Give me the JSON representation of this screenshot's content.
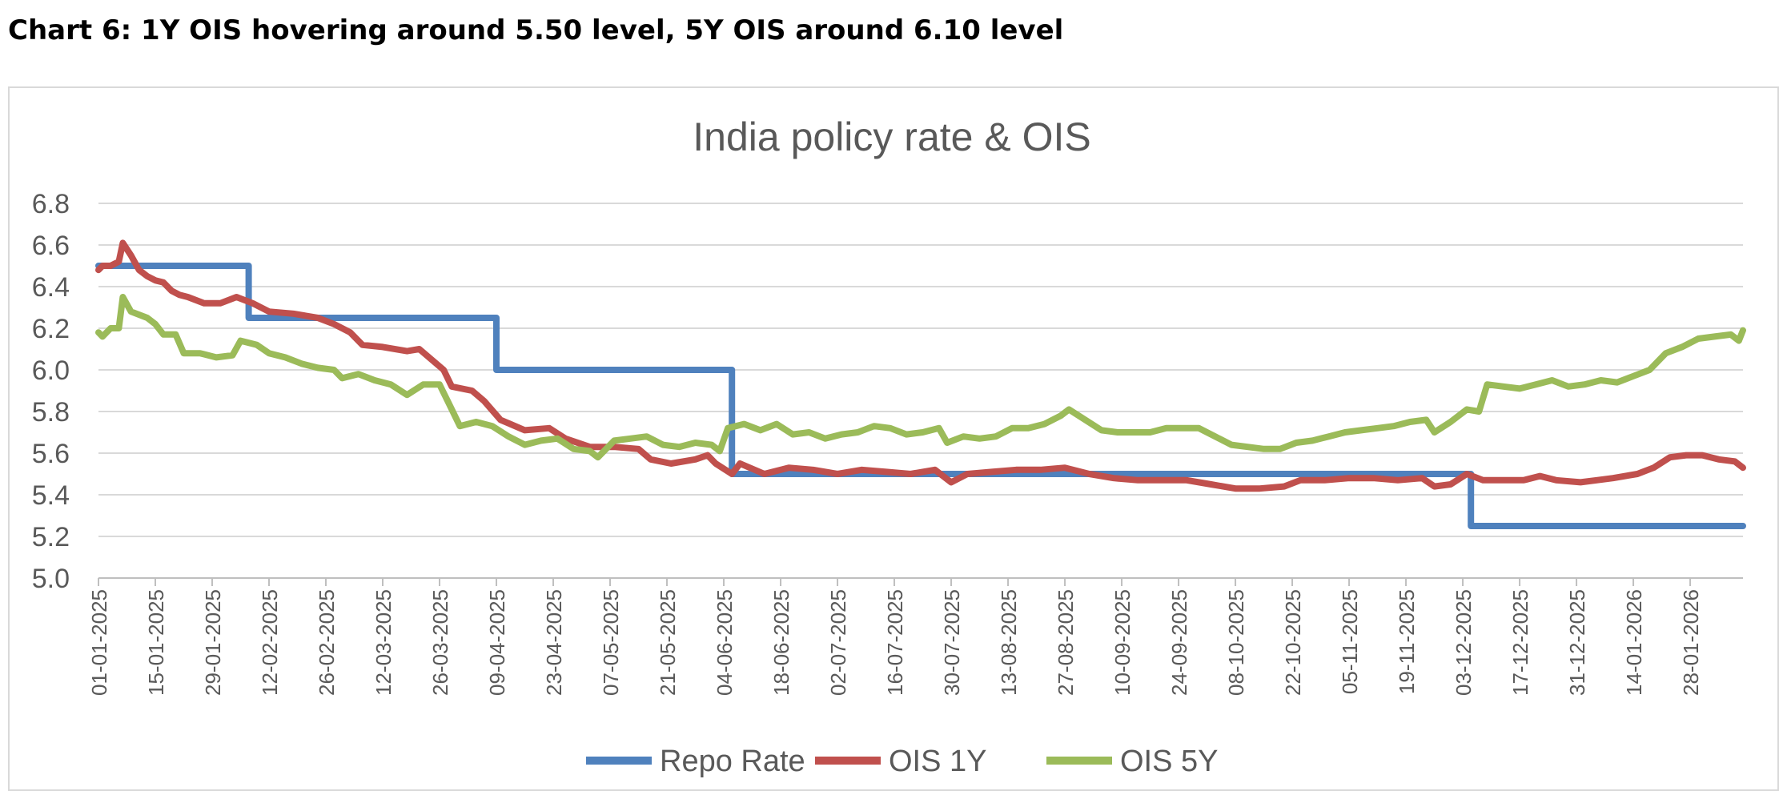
{
  "heading": "Chart 6: 1Y OIS hovering around 5.50 level, 5Y OIS around 6.10 level",
  "chart_data": {
    "type": "line",
    "title": "India policy rate & OIS",
    "xlabel": "",
    "ylabel": "",
    "ylim": [
      5.0,
      6.8
    ],
    "xlim": [
      "01-01-2025",
      "10-02-2026"
    ],
    "yticks": [
      "5.0",
      "5.2",
      "5.4",
      "5.6",
      "5.8",
      "6.0",
      "6.2",
      "6.4",
      "6.6",
      "6.8"
    ],
    "xticks": [
      "01-01-2025",
      "15-01-2025",
      "29-01-2025",
      "12-02-2025",
      "26-02-2025",
      "12-03-2025",
      "26-03-2025",
      "09-04-2025",
      "23-04-2025",
      "07-05-2025",
      "21-05-2025",
      "04-06-2025",
      "18-06-2025",
      "02-07-2025",
      "16-07-2025",
      "30-07-2025",
      "13-08-2025",
      "27-08-2025",
      "10-09-2025",
      "24-09-2025",
      "08-10-2025",
      "22-10-2025",
      "05-11-2025",
      "19-11-2025",
      "03-12-2025",
      "17-12-2025",
      "31-12-2025",
      "14-01-2026",
      "28-01-2026"
    ],
    "grid": true,
    "legend_position": "bottom",
    "colors": {
      "repo": "#4f81bd",
      "ois1y": "#c0504d",
      "ois5y": "#9bbb59",
      "grid": "#d9d9d9",
      "text": "#595959"
    },
    "series": [
      {
        "name": "Repo Rate",
        "points": [
          [
            "01-01-2025",
            6.5
          ],
          [
            "07-02-2025",
            6.5
          ],
          [
            "07-02-2025",
            6.25
          ],
          [
            "09-04-2025",
            6.25
          ],
          [
            "09-04-2025",
            6.0
          ],
          [
            "06-06-2025",
            6.0
          ],
          [
            "06-06-2025",
            5.5
          ],
          [
            "05-12-2025",
            5.5
          ],
          [
            "05-12-2025",
            5.25
          ],
          [
            "10-02-2026",
            5.25
          ]
        ]
      },
      {
        "name": "OIS 1Y",
        "points": [
          [
            "01-01-2025",
            6.48
          ],
          [
            "02-01-2025",
            6.5
          ],
          [
            "04-01-2025",
            6.5
          ],
          [
            "06-01-2025",
            6.52
          ],
          [
            "07-01-2025",
            6.61
          ],
          [
            "09-01-2025",
            6.55
          ],
          [
            "11-01-2025",
            6.48
          ],
          [
            "13-01-2025",
            6.45
          ],
          [
            "15-01-2025",
            6.43
          ],
          [
            "17-01-2025",
            6.42
          ],
          [
            "19-01-2025",
            6.38
          ],
          [
            "21-01-2025",
            6.36
          ],
          [
            "23-01-2025",
            6.35
          ],
          [
            "27-01-2025",
            6.32
          ],
          [
            "31-01-2025",
            6.32
          ],
          [
            "04-02-2025",
            6.35
          ],
          [
            "08-02-2025",
            6.32
          ],
          [
            "12-02-2025",
            6.28
          ],
          [
            "18-02-2025",
            6.27
          ],
          [
            "24-02-2025",
            6.25
          ],
          [
            "28-02-2025",
            6.22
          ],
          [
            "04-03-2025",
            6.18
          ],
          [
            "07-03-2025",
            6.12
          ],
          [
            "12-03-2025",
            6.11
          ],
          [
            "18-03-2025",
            6.09
          ],
          [
            "21-03-2025",
            6.1
          ],
          [
            "24-03-2025",
            6.05
          ],
          [
            "27-03-2025",
            6.0
          ],
          [
            "29-03-2025",
            5.92
          ],
          [
            "03-04-2025",
            5.9
          ],
          [
            "06-04-2025",
            5.85
          ],
          [
            "10-04-2025",
            5.76
          ],
          [
            "16-04-2025",
            5.71
          ],
          [
            "22-04-2025",
            5.72
          ],
          [
            "26-04-2025",
            5.67
          ],
          [
            "02-05-2025",
            5.63
          ],
          [
            "08-05-2025",
            5.63
          ],
          [
            "14-05-2025",
            5.62
          ],
          [
            "17-05-2025",
            5.57
          ],
          [
            "22-05-2025",
            5.55
          ],
          [
            "28-05-2025",
            5.57
          ],
          [
            "31-05-2025",
            5.59
          ],
          [
            "02-06-2025",
            5.55
          ],
          [
            "06-06-2025",
            5.5
          ],
          [
            "08-06-2025",
            5.55
          ],
          [
            "14-06-2025",
            5.5
          ],
          [
            "20-06-2025",
            5.53
          ],
          [
            "26-06-2025",
            5.52
          ],
          [
            "02-07-2025",
            5.5
          ],
          [
            "08-07-2025",
            5.52
          ],
          [
            "14-07-2025",
            5.51
          ],
          [
            "20-07-2025",
            5.5
          ],
          [
            "26-07-2025",
            5.52
          ],
          [
            "30-07-2025",
            5.46
          ],
          [
            "03-08-2025",
            5.5
          ],
          [
            "09-08-2025",
            5.51
          ],
          [
            "15-08-2025",
            5.52
          ],
          [
            "21-08-2025",
            5.52
          ],
          [
            "27-08-2025",
            5.53
          ],
          [
            "02-09-2025",
            5.5
          ],
          [
            "08-09-2025",
            5.48
          ],
          [
            "14-09-2025",
            5.47
          ],
          [
            "20-09-2025",
            5.47
          ],
          [
            "26-09-2025",
            5.47
          ],
          [
            "02-10-2025",
            5.45
          ],
          [
            "08-10-2025",
            5.43
          ],
          [
            "14-10-2025",
            5.43
          ],
          [
            "20-10-2025",
            5.44
          ],
          [
            "24-10-2025",
            5.47
          ],
          [
            "30-10-2025",
            5.47
          ],
          [
            "05-11-2025",
            5.48
          ],
          [
            "11-11-2025",
            5.48
          ],
          [
            "17-11-2025",
            5.47
          ],
          [
            "23-11-2025",
            5.48
          ],
          [
            "26-11-2025",
            5.44
          ],
          [
            "30-11-2025",
            5.45
          ],
          [
            "04-12-2025",
            5.5
          ],
          [
            "08-12-2025",
            5.47
          ],
          [
            "12-12-2025",
            5.47
          ],
          [
            "18-12-2025",
            5.47
          ],
          [
            "22-12-2025",
            5.49
          ],
          [
            "26-12-2025",
            5.47
          ],
          [
            "01-01-2026",
            5.46
          ],
          [
            "05-01-2026",
            5.47
          ],
          [
            "09-01-2026",
            5.48
          ],
          [
            "15-01-2026",
            5.5
          ],
          [
            "19-01-2026",
            5.53
          ],
          [
            "23-01-2026",
            5.58
          ],
          [
            "27-01-2026",
            5.59
          ],
          [
            "31-01-2026",
            5.59
          ],
          [
            "04-02-2026",
            5.57
          ],
          [
            "08-02-2026",
            5.56
          ],
          [
            "10-02-2026",
            5.53
          ]
        ]
      },
      {
        "name": "OIS 5Y",
        "points": [
          [
            "01-01-2025",
            6.18
          ],
          [
            "02-01-2025",
            6.16
          ],
          [
            "04-01-2025",
            6.2
          ],
          [
            "06-01-2025",
            6.2
          ],
          [
            "07-01-2025",
            6.35
          ],
          [
            "09-01-2025",
            6.28
          ],
          [
            "13-01-2025",
            6.25
          ],
          [
            "15-01-2025",
            6.22
          ],
          [
            "17-01-2025",
            6.17
          ],
          [
            "20-01-2025",
            6.17
          ],
          [
            "22-01-2025",
            6.08
          ],
          [
            "26-01-2025",
            6.08
          ],
          [
            "30-01-2025",
            6.06
          ],
          [
            "03-02-2025",
            6.07
          ],
          [
            "05-02-2025",
            6.14
          ],
          [
            "09-02-2025",
            6.12
          ],
          [
            "12-02-2025",
            6.08
          ],
          [
            "16-02-2025",
            6.06
          ],
          [
            "20-02-2025",
            6.03
          ],
          [
            "24-02-2025",
            6.01
          ],
          [
            "28-02-2025",
            6.0
          ],
          [
            "02-03-2025",
            5.96
          ],
          [
            "06-03-2025",
            5.98
          ],
          [
            "10-03-2025",
            5.95
          ],
          [
            "14-03-2025",
            5.93
          ],
          [
            "18-03-2025",
            5.88
          ],
          [
            "22-03-2025",
            5.93
          ],
          [
            "26-03-2025",
            5.93
          ],
          [
            "28-03-2025",
            5.85
          ],
          [
            "31-03-2025",
            5.73
          ],
          [
            "04-04-2025",
            5.75
          ],
          [
            "08-04-2025",
            5.73
          ],
          [
            "12-04-2025",
            5.68
          ],
          [
            "16-04-2025",
            5.64
          ],
          [
            "20-04-2025",
            5.66
          ],
          [
            "24-04-2025",
            5.67
          ],
          [
            "28-04-2025",
            5.62
          ],
          [
            "02-05-2025",
            5.61
          ],
          [
            "04-05-2025",
            5.58
          ],
          [
            "08-05-2025",
            5.66
          ],
          [
            "12-05-2025",
            5.67
          ],
          [
            "16-05-2025",
            5.68
          ],
          [
            "20-05-2025",
            5.64
          ],
          [
            "24-05-2025",
            5.63
          ],
          [
            "28-05-2025",
            5.65
          ],
          [
            "01-06-2025",
            5.64
          ],
          [
            "03-06-2025",
            5.61
          ],
          [
            "05-06-2025",
            5.72
          ],
          [
            "09-06-2025",
            5.74
          ],
          [
            "13-06-2025",
            5.71
          ],
          [
            "17-06-2025",
            5.74
          ],
          [
            "21-06-2025",
            5.69
          ],
          [
            "25-06-2025",
            5.7
          ],
          [
            "29-06-2025",
            5.67
          ],
          [
            "03-07-2025",
            5.69
          ],
          [
            "07-07-2025",
            5.7
          ],
          [
            "11-07-2025",
            5.73
          ],
          [
            "15-07-2025",
            5.72
          ],
          [
            "19-07-2025",
            5.69
          ],
          [
            "23-07-2025",
            5.7
          ],
          [
            "27-07-2025",
            5.72
          ],
          [
            "29-07-2025",
            5.65
          ],
          [
            "02-08-2025",
            5.68
          ],
          [
            "06-08-2025",
            5.67
          ],
          [
            "10-08-2025",
            5.68
          ],
          [
            "14-08-2025",
            5.72
          ],
          [
            "18-08-2025",
            5.72
          ],
          [
            "22-08-2025",
            5.74
          ],
          [
            "26-08-2025",
            5.78
          ],
          [
            "28-08-2025",
            5.81
          ],
          [
            "01-09-2025",
            5.76
          ],
          [
            "05-09-2025",
            5.71
          ],
          [
            "09-09-2025",
            5.7
          ],
          [
            "13-09-2025",
            5.7
          ],
          [
            "17-09-2025",
            5.7
          ],
          [
            "21-09-2025",
            5.72
          ],
          [
            "25-09-2025",
            5.72
          ],
          [
            "29-09-2025",
            5.72
          ],
          [
            "03-10-2025",
            5.68
          ],
          [
            "07-10-2025",
            5.64
          ],
          [
            "11-10-2025",
            5.63
          ],
          [
            "15-10-2025",
            5.62
          ],
          [
            "19-10-2025",
            5.62
          ],
          [
            "23-10-2025",
            5.65
          ],
          [
            "27-10-2025",
            5.66
          ],
          [
            "31-10-2025",
            5.68
          ],
          [
            "04-11-2025",
            5.7
          ],
          [
            "08-11-2025",
            5.71
          ],
          [
            "12-11-2025",
            5.72
          ],
          [
            "16-11-2025",
            5.73
          ],
          [
            "20-11-2025",
            5.75
          ],
          [
            "24-11-2025",
            5.76
          ],
          [
            "26-11-2025",
            5.7
          ],
          [
            "30-11-2025",
            5.75
          ],
          [
            "04-12-2025",
            5.81
          ],
          [
            "07-12-2025",
            5.8
          ],
          [
            "09-12-2025",
            5.93
          ],
          [
            "13-12-2025",
            5.92
          ],
          [
            "17-12-2025",
            5.91
          ],
          [
            "21-12-2025",
            5.93
          ],
          [
            "25-12-2025",
            5.95
          ],
          [
            "29-12-2025",
            5.92
          ],
          [
            "02-01-2026",
            5.93
          ],
          [
            "06-01-2026",
            5.95
          ],
          [
            "10-01-2026",
            5.94
          ],
          [
            "14-01-2026",
            5.97
          ],
          [
            "18-01-2026",
            6.0
          ],
          [
            "22-01-2026",
            6.08
          ],
          [
            "26-01-2026",
            6.11
          ],
          [
            "30-01-2026",
            6.15
          ],
          [
            "03-02-2026",
            6.16
          ],
          [
            "07-02-2026",
            6.17
          ],
          [
            "09-02-2026",
            6.14
          ],
          [
            "10-02-2026",
            6.19
          ]
        ]
      }
    ]
  }
}
